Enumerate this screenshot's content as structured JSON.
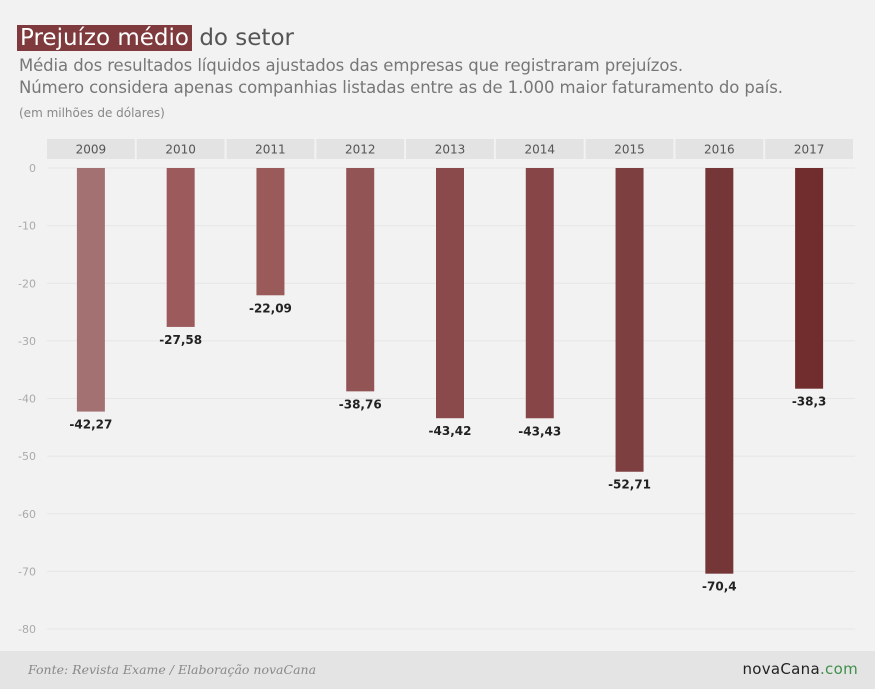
{
  "header": {
    "title_highlight": "Prejuízo médio",
    "title_rest": "do setor",
    "subtitle_line1": "Média dos resultados líquidos ajustados das empresas que registraram prejuízos.",
    "subtitle_line2": "Número considera apenas companhias listadas entre as de 1.000 maior faturamento do país.",
    "units": "(em milhões de dólares)"
  },
  "footer": {
    "source": "Fonte: Revista Exame / Elaboração novaCana",
    "brand_name": "novaCana",
    "brand_domain": ".com"
  },
  "colors": {
    "title_highlight": "#7e3a3c",
    "header_band": "#e3e3e3",
    "gridline": "#e6e6e6",
    "brand_domain": "#3f8f4a"
  },
  "chart_data": {
    "type": "bar",
    "title": "Prejuízo médio do setor",
    "xlabel": "",
    "ylabel": "em milhões de dólares",
    "categories": [
      "2009",
      "2010",
      "2011",
      "2012",
      "2013",
      "2014",
      "2015",
      "2016",
      "2017"
    ],
    "values": [
      -42.27,
      -27.58,
      -22.09,
      -38.76,
      -43.42,
      -43.43,
      -52.71,
      -70.4,
      -38.3
    ],
    "value_labels": [
      "-42,27",
      "-27,58",
      "-22,09",
      "-38,76",
      "-43,42",
      "-43,43",
      "-52,71",
      "-70,4",
      "-38,3"
    ],
    "bar_colors": [
      "#a47173",
      "#9c5a5c",
      "#9a5a5a",
      "#935456",
      "#8a4a4c",
      "#884547",
      "#7e3f41",
      "#753638",
      "#712c2e"
    ],
    "ylim": [
      -80,
      0
    ],
    "yticks": [
      0,
      -10,
      -20,
      -30,
      -40,
      -50,
      -60,
      -70,
      -80
    ],
    "ytick_labels": [
      "0",
      "-10",
      "-20",
      "-30",
      "-40",
      "-50",
      "-60",
      "-70",
      "-80"
    ],
    "grid": true,
    "category_position": "top",
    "legend": "none"
  }
}
